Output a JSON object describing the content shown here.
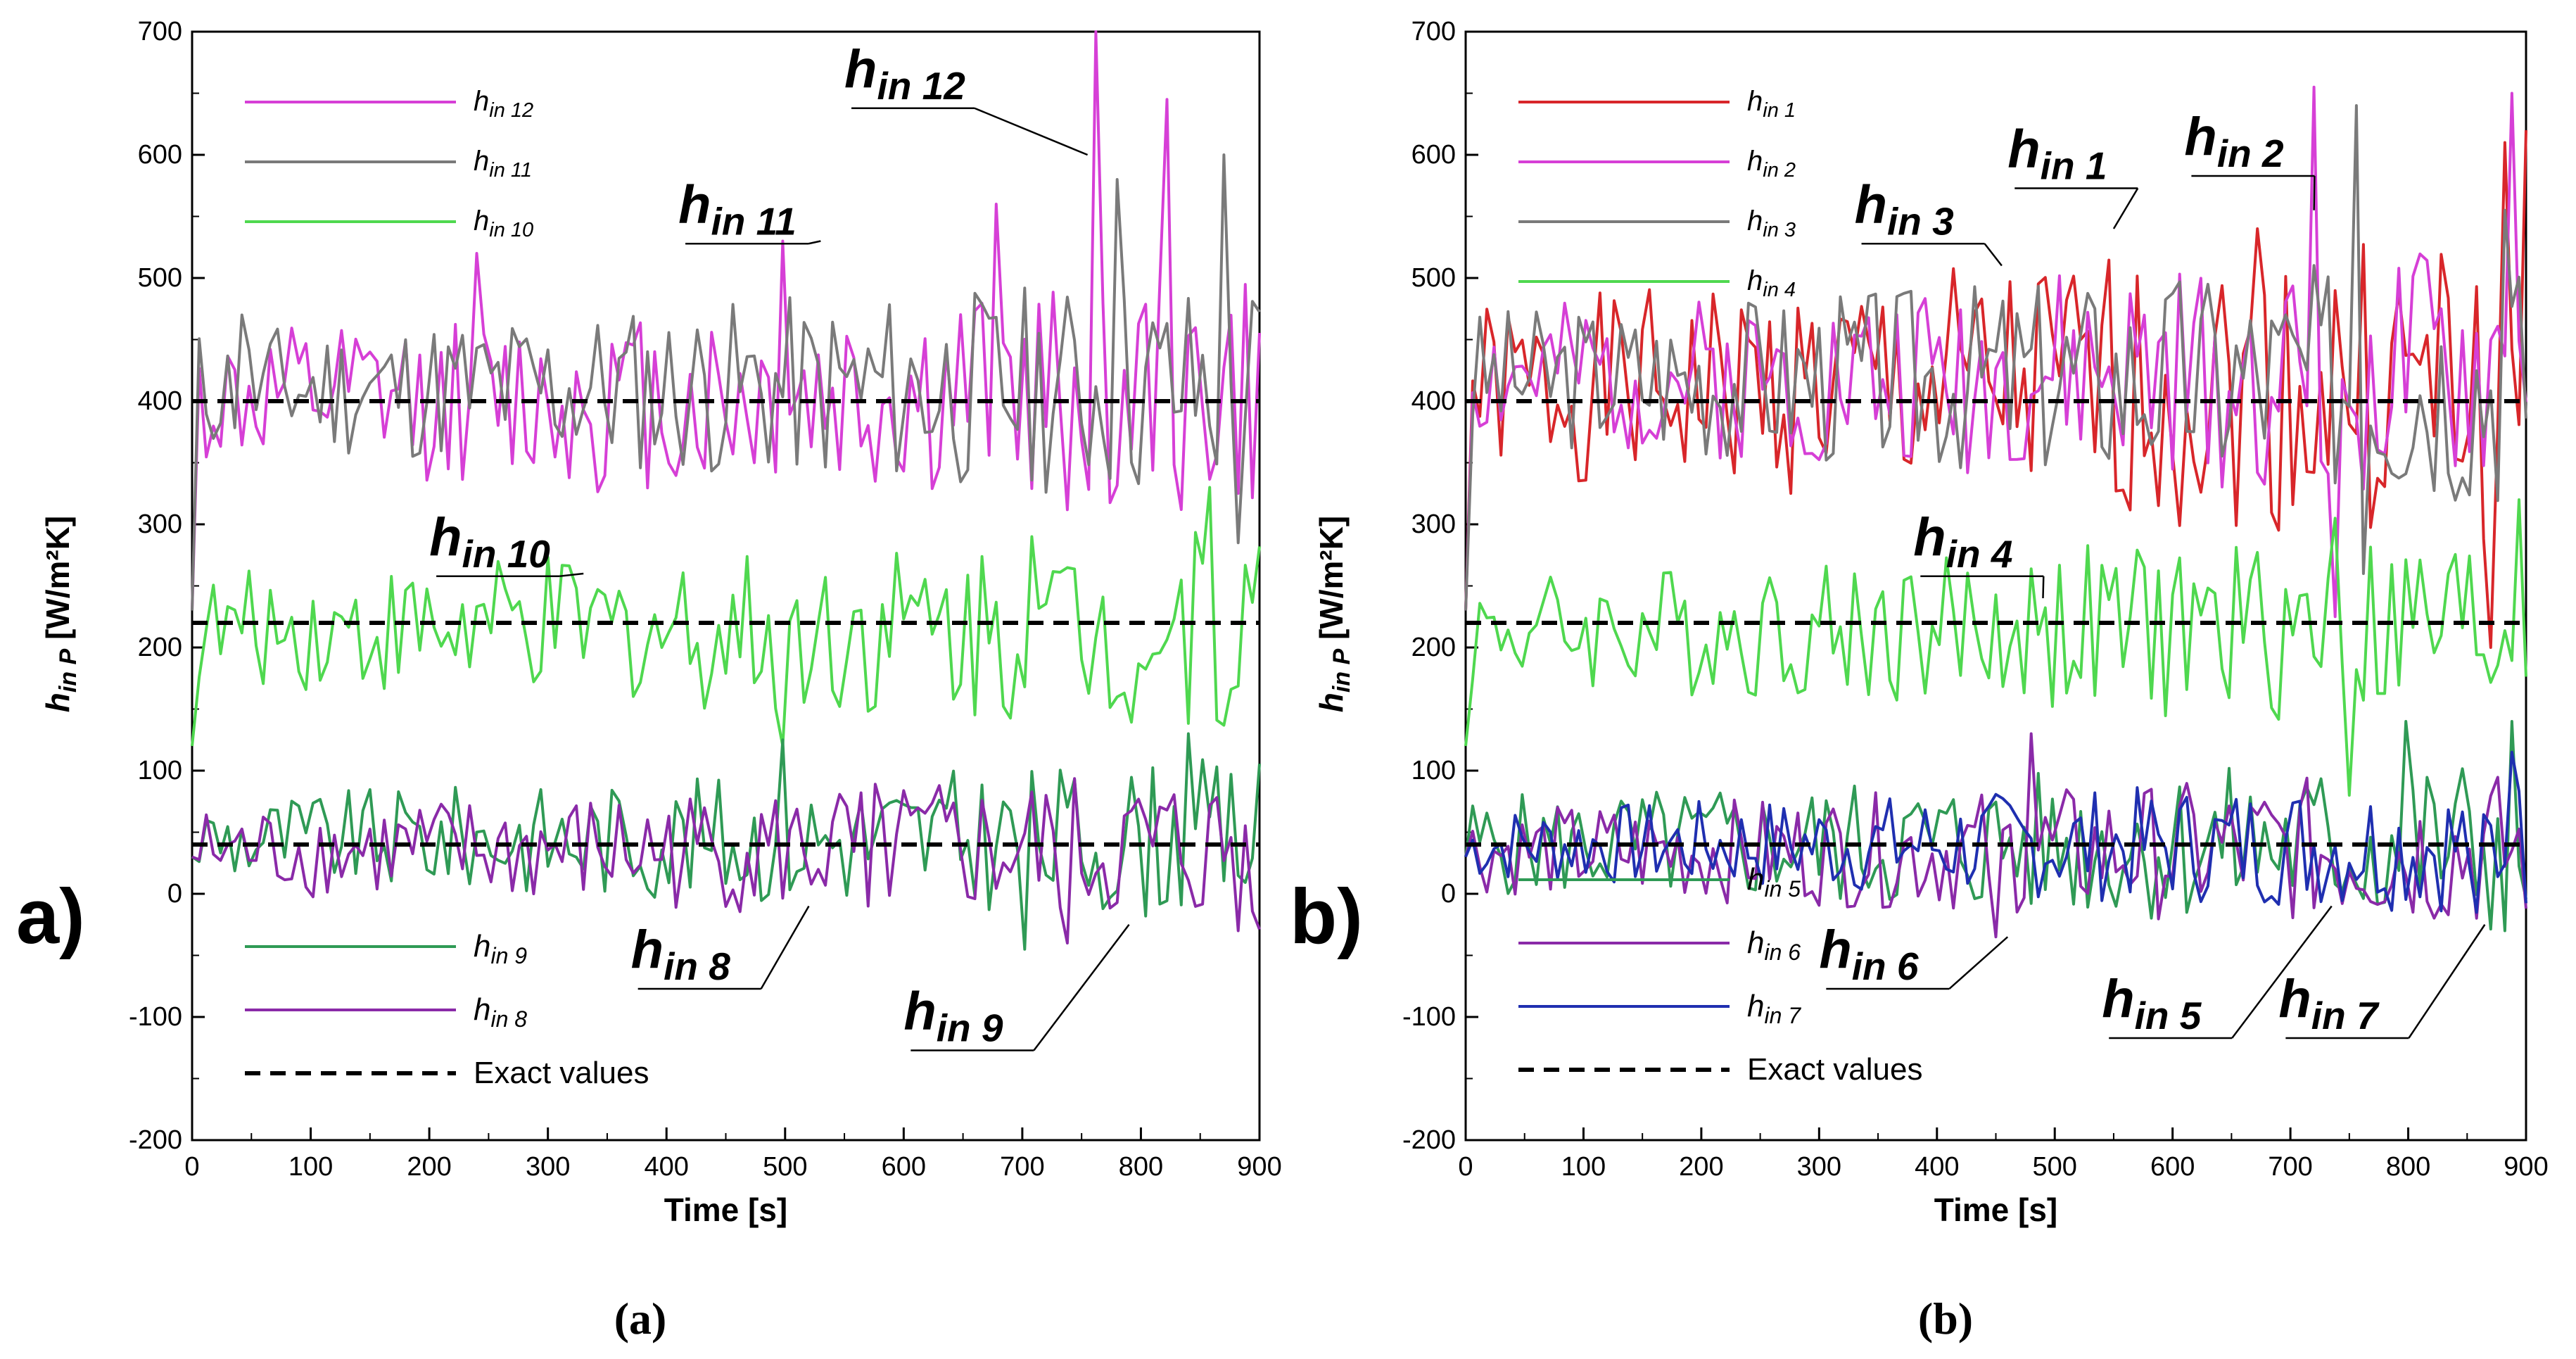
{
  "figure": {
    "caption_a": "(a)",
    "caption_b": "(b)"
  },
  "colors": {
    "h1": "#d8262a",
    "h2": "#d63fd6",
    "h3": "#7a7a7a",
    "h4": "#4fd84f",
    "h5": "#2f9a55",
    "h6": "#8a2aa8",
    "h7": "#1f2fb0",
    "h8": "#8a2aa8",
    "h9": "#2f9a55",
    "h10": "#4fd84f",
    "h11": "#7a7a7a",
    "h12": "#d63fd6",
    "exact": "#000000",
    "axis": "#000000"
  },
  "chart_data": [
    {
      "type": "line",
      "panel_letter": "a)",
      "title": "",
      "xlabel": "Time [s]",
      "ylabel_main": "h",
      "ylabel_sub": "in P",
      "ylabel_unit": " [W/m²K]",
      "xlim": [
        0,
        900
      ],
      "ylim": [
        -200,
        700
      ],
      "xticks": [
        0,
        100,
        200,
        300,
        400,
        500,
        600,
        700,
        800,
        900
      ],
      "yticks": [
        -200,
        -100,
        0,
        100,
        200,
        300,
        400,
        500,
        600,
        700
      ],
      "legend_top": [
        {
          "main": "h",
          "sub": "in 12",
          "color_key": "h12"
        },
        {
          "main": "h",
          "sub": "in 11",
          "color_key": "h11"
        },
        {
          "main": "h",
          "sub": "in 10",
          "color_key": "h10"
        }
      ],
      "legend_bottom": [
        {
          "main": "h",
          "sub": "in 9",
          "color_key": "h9"
        },
        {
          "main": "h",
          "sub": "in 8",
          "color_key": "h8"
        },
        {
          "main": "Exact values",
          "sub": "",
          "color_key": "exact",
          "dashed": true
        }
      ],
      "annotations": [
        {
          "main": "h",
          "sub": "in 12",
          "text_x": 550,
          "text_y": 655,
          "point_x": 755,
          "point_y": 600
        },
        {
          "main": "h",
          "sub": "in 11",
          "text_x": 410,
          "text_y": 545,
          "point_x": 530,
          "point_y": 530
        },
        {
          "main": "h",
          "sub": "in 10",
          "text_x": 200,
          "text_y": 275,
          "point_x": 330,
          "point_y": 260
        },
        {
          "main": "h",
          "sub": "in 8",
          "text_x": 370,
          "text_y": -60,
          "point_x": 520,
          "point_y": -10
        },
        {
          "main": "h",
          "sub": "in 9",
          "text_x": 600,
          "text_y": -110,
          "point_x": 790,
          "point_y": -25
        }
      ],
      "exact_values": [
        400,
        220,
        40
      ],
      "series": [
        {
          "name": "h in 12",
          "color_key": "h12",
          "base": 400,
          "amp": 55,
          "seed": 12,
          "peaks": [
            [
              760,
              700
            ],
            [
              820,
              645
            ],
            [
              680,
              560
            ],
            [
              240,
              520
            ],
            [
              500,
              530
            ]
          ]
        },
        {
          "name": "h in 11",
          "color_key": "h11",
          "base": 410,
          "amp": 50,
          "seed": 11,
          "peaks": [
            [
              870,
              600
            ],
            [
              880,
              285
            ],
            [
              780,
              580
            ],
            [
              40,
              470
            ]
          ]
        },
        {
          "name": "h in 10",
          "color_key": "h10",
          "base": 215,
          "amp": 45,
          "seed": 10,
          "peaks": [
            [
              860,
              330
            ],
            [
              710,
              290
            ],
            [
              500,
              120
            ]
          ]
        },
        {
          "name": "h in 9",
          "color_key": "h9",
          "base": 45,
          "amp": 35,
          "seed": 9,
          "peaks": [
            [
              840,
              130
            ],
            [
              700,
              -45
            ],
            [
              500,
              125
            ]
          ]
        },
        {
          "name": "h in 8",
          "color_key": "h8",
          "base": 35,
          "amp": 35,
          "seed": 8,
          "peaks": [
            [
              740,
              -40
            ],
            [
              880,
              -30
            ],
            [
              570,
              -10
            ]
          ]
        }
      ]
    },
    {
      "type": "line",
      "panel_letter": "b)",
      "title": "",
      "xlabel": "Time [s]",
      "ylabel_main": "h",
      "ylabel_sub": "in P",
      "ylabel_unit": " [W/m²K]",
      "xlim": [
        0,
        900
      ],
      "ylim": [
        -200,
        700
      ],
      "xticks": [
        0,
        100,
        200,
        300,
        400,
        500,
        600,
        700,
        800,
        900
      ],
      "yticks": [
        -200,
        -100,
        0,
        100,
        200,
        300,
        400,
        500,
        600,
        700
      ],
      "legend_top": [
        {
          "main": "h",
          "sub": "in 1",
          "color_key": "h1"
        },
        {
          "main": "h",
          "sub": "in 2",
          "color_key": "h2"
        },
        {
          "main": "h",
          "sub": "in 3",
          "color_key": "h3"
        },
        {
          "main": "h",
          "sub": "in 4",
          "color_key": "h4"
        }
      ],
      "legend_bottom": [
        {
          "main": "h",
          "sub": "in 5",
          "color_key": "h5"
        },
        {
          "main": "h",
          "sub": "in 6",
          "color_key": "h6"
        },
        {
          "main": "h",
          "sub": "in 7",
          "color_key": "h7"
        },
        {
          "main": "Exact values",
          "sub": "",
          "color_key": "exact",
          "dashed": true
        }
      ],
      "annotations": [
        {
          "main": "h",
          "sub": "in 3",
          "text_x": 330,
          "text_y": 545,
          "point_x": 455,
          "point_y": 510
        },
        {
          "main": "h",
          "sub": "in 1",
          "text_x": 460,
          "text_y": 590,
          "point_x": 550,
          "point_y": 540
        },
        {
          "main": "h",
          "sub": "in 2",
          "text_x": 610,
          "text_y": 600,
          "point_x": 720,
          "point_y": 555
        },
        {
          "main": "h",
          "sub": "in 4",
          "text_x": 380,
          "text_y": 275,
          "point_x": 490,
          "point_y": 240
        },
        {
          "main": "h",
          "sub": "in 6",
          "text_x": 300,
          "text_y": -60,
          "point_x": 460,
          "point_y": -35
        },
        {
          "main": "h",
          "sub": "in 5",
          "text_x": 540,
          "text_y": -100,
          "point_x": 735,
          "point_y": -10
        },
        {
          "main": "h",
          "sub": "in 7",
          "text_x": 690,
          "text_y": -100,
          "point_x": 865,
          "point_y": -25
        }
      ],
      "exact_values": [
        400,
        220,
        40
      ],
      "series": [
        {
          "name": "h in 1",
          "color_key": "h1",
          "base": 410,
          "amp": 70,
          "seed": 1,
          "peaks": [
            [
              870,
              200
            ],
            [
              900,
              620
            ],
            [
              880,
              610
            ],
            [
              670,
              540
            ]
          ]
        },
        {
          "name": "h in 2",
          "color_key": "h2",
          "base": 420,
          "amp": 55,
          "seed": 2,
          "peaks": [
            [
              720,
              655
            ],
            [
              890,
              650
            ],
            [
              740,
              225
            ]
          ]
        },
        {
          "name": "h in 3",
          "color_key": "h3",
          "base": 420,
          "amp": 55,
          "seed": 3,
          "peaks": [
            [
              755,
              640
            ],
            [
              760,
              260
            ],
            [
              880,
              555
            ]
          ]
        },
        {
          "name": "h in 4",
          "color_key": "h4",
          "base": 215,
          "amp": 45,
          "seed": 4,
          "peaks": [
            [
              895,
              320
            ],
            [
              740,
              305
            ],
            [
              750,
              80
            ]
          ]
        },
        {
          "name": "h in 5",
          "color_key": "h5",
          "base": 40,
          "amp": 40,
          "seed": 5,
          "peaks": [
            [
              800,
              140
            ],
            [
              890,
              140
            ],
            [
              880,
              -30
            ]
          ]
        },
        {
          "name": "h in 6",
          "color_key": "h6",
          "base": 35,
          "amp": 35,
          "seed": 6,
          "peaks": [
            [
              480,
              130
            ],
            [
              450,
              -35
            ]
          ]
        },
        {
          "name": "h in 7",
          "color_key": "h7",
          "base": 40,
          "amp": 30,
          "seed": 7,
          "peaks": [
            [
              890,
              115
            ],
            [
              860,
              -15
            ]
          ]
        }
      ]
    }
  ]
}
